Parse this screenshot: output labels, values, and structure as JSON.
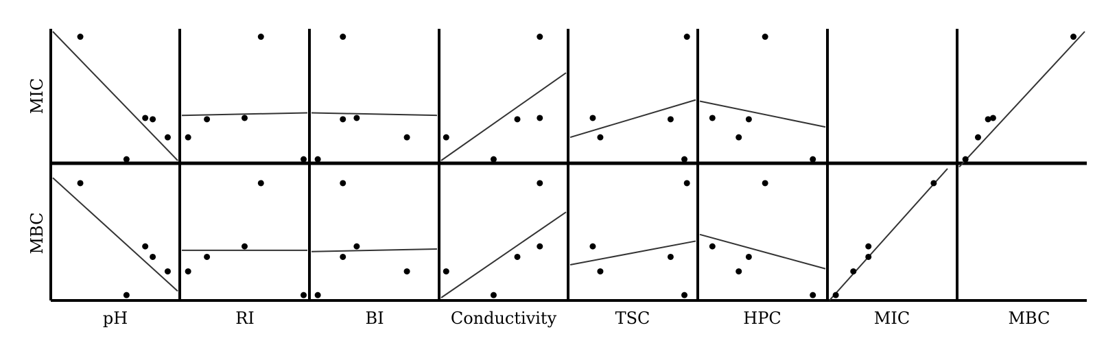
{
  "chart_data": {
    "type": "scatter",
    "subtype": "scatterplot-matrix-with-linear-fits",
    "row_labels": [
      "MIC",
      "MBC"
    ],
    "column_labels": [
      "pH",
      "RI",
      "BI",
      "Conductivity",
      "TSC",
      "HPC",
      "MIC",
      "MBC"
    ],
    "panels": [
      {
        "row": "MIC",
        "column": "pH",
        "points": [
          [
            0.22,
            0.96
          ],
          [
            0.59,
            0.01
          ],
          [
            0.74,
            0.33
          ],
          [
            0.8,
            0.32
          ],
          [
            0.92,
            0.18
          ]
        ],
        "fit": [
          [
            0.0,
            1.0
          ],
          [
            1.0,
            0.0
          ]
        ]
      },
      {
        "row": "MIC",
        "column": "RI",
        "points": [
          [
            0.05,
            0.18
          ],
          [
            0.2,
            0.32
          ],
          [
            0.5,
            0.33
          ],
          [
            0.63,
            0.96
          ],
          [
            0.97,
            0.01
          ]
        ],
        "fit": [
          [
            0.0,
            0.35
          ],
          [
            1.0,
            0.37
          ]
        ]
      },
      {
        "row": "MIC",
        "column": "BI",
        "points": [
          [
            0.05,
            0.01
          ],
          [
            0.25,
            0.96
          ],
          [
            0.25,
            0.32
          ],
          [
            0.36,
            0.33
          ],
          [
            0.76,
            0.18
          ]
        ],
        "fit": [
          [
            0.0,
            0.37
          ],
          [
            1.0,
            0.35
          ]
        ]
      },
      {
        "row": "MIC",
        "column": "Conductivity",
        "points": [
          [
            0.04,
            0.18
          ],
          [
            0.42,
            0.01
          ],
          [
            0.61,
            0.32
          ],
          [
            0.79,
            0.33
          ],
          [
            0.79,
            0.96
          ]
        ],
        "fit": [
          [
            0.0,
            0.0
          ],
          [
            1.0,
            0.68
          ]
        ]
      },
      {
        "row": "MIC",
        "column": "TSC",
        "points": [
          [
            0.18,
            0.33
          ],
          [
            0.24,
            0.18
          ],
          [
            0.8,
            0.32
          ],
          [
            0.91,
            0.01
          ],
          [
            0.93,
            0.96
          ]
        ],
        "fit": [
          [
            0.0,
            0.18
          ],
          [
            1.0,
            0.47
          ]
        ]
      },
      {
        "row": "MIC",
        "column": "HPC",
        "points": [
          [
            0.1,
            0.33
          ],
          [
            0.31,
            0.18
          ],
          [
            0.39,
            0.32
          ],
          [
            0.52,
            0.96
          ],
          [
            0.9,
            0.01
          ]
        ],
        "fit": [
          [
            0.0,
            0.46
          ],
          [
            1.0,
            0.26
          ]
        ]
      },
      {
        "row": "MIC",
        "column": "MIC",
        "points": [],
        "fit": []
      },
      {
        "row": "MIC",
        "column": "MBC",
        "points": [
          [
            0.05,
            0.01
          ],
          [
            0.15,
            0.18
          ],
          [
            0.23,
            0.32
          ],
          [
            0.27,
            0.33
          ],
          [
            0.91,
            0.96
          ]
        ],
        "fit": [
          [
            0.0,
            -0.05
          ],
          [
            1.0,
            1.0
          ]
        ]
      },
      {
        "row": "MBC",
        "column": "pH",
        "points": [
          [
            0.22,
            0.87
          ],
          [
            0.59,
            0.02
          ],
          [
            0.74,
            0.39
          ],
          [
            0.8,
            0.31
          ],
          [
            0.92,
            0.2
          ]
        ],
        "fit": [
          [
            0.0,
            0.91
          ],
          [
            1.0,
            0.05
          ]
        ]
      },
      {
        "row": "MBC",
        "column": "RI",
        "points": [
          [
            0.05,
            0.2
          ],
          [
            0.2,
            0.31
          ],
          [
            0.5,
            0.39
          ],
          [
            0.63,
            0.87
          ],
          [
            0.97,
            0.02
          ]
        ],
        "fit": [
          [
            0.0,
            0.36
          ],
          [
            1.0,
            0.36
          ]
        ]
      },
      {
        "row": "MBC",
        "column": "BI",
        "points": [
          [
            0.05,
            0.02
          ],
          [
            0.25,
            0.87
          ],
          [
            0.25,
            0.31
          ],
          [
            0.36,
            0.39
          ],
          [
            0.76,
            0.2
          ]
        ],
        "fit": [
          [
            0.0,
            0.35
          ],
          [
            1.0,
            0.37
          ]
        ]
      },
      {
        "row": "MBC",
        "column": "Conductivity",
        "points": [
          [
            0.04,
            0.2
          ],
          [
            0.42,
            0.02
          ],
          [
            0.61,
            0.31
          ],
          [
            0.79,
            0.39
          ],
          [
            0.79,
            0.87
          ]
        ],
        "fit": [
          [
            0.0,
            0.0
          ],
          [
            1.0,
            0.65
          ]
        ]
      },
      {
        "row": "MBC",
        "column": "TSC",
        "points": [
          [
            0.18,
            0.39
          ],
          [
            0.24,
            0.2
          ],
          [
            0.8,
            0.31
          ],
          [
            0.91,
            0.02
          ],
          [
            0.93,
            0.87
          ]
        ],
        "fit": [
          [
            0.0,
            0.25
          ],
          [
            1.0,
            0.43
          ]
        ]
      },
      {
        "row": "MBC",
        "column": "HPC",
        "points": [
          [
            0.1,
            0.39
          ],
          [
            0.31,
            0.2
          ],
          [
            0.39,
            0.31
          ],
          [
            0.52,
            0.87
          ],
          [
            0.9,
            0.02
          ]
        ],
        "fit": [
          [
            0.0,
            0.48
          ],
          [
            1.0,
            0.22
          ]
        ]
      },
      {
        "row": "MBC",
        "column": "MIC",
        "points": [
          [
            0.05,
            0.02
          ],
          [
            0.19,
            0.2
          ],
          [
            0.31,
            0.31
          ],
          [
            0.31,
            0.39
          ],
          [
            0.83,
            0.87
          ]
        ],
        "fit": [
          [
            0.0,
            -0.02
          ],
          [
            0.94,
            0.98
          ]
        ]
      },
      {
        "row": "MBC",
        "column": "MBC",
        "points": [],
        "fit": []
      }
    ],
    "axes": {
      "x_range": [
        0,
        1
      ],
      "y_range": [
        0,
        1
      ],
      "tick_labels": false,
      "grid": false
    },
    "legend": "none",
    "colors": {
      "points": "#000000",
      "fit_line": "#333333",
      "axes": "#000000",
      "background": "#ffffff"
    }
  }
}
